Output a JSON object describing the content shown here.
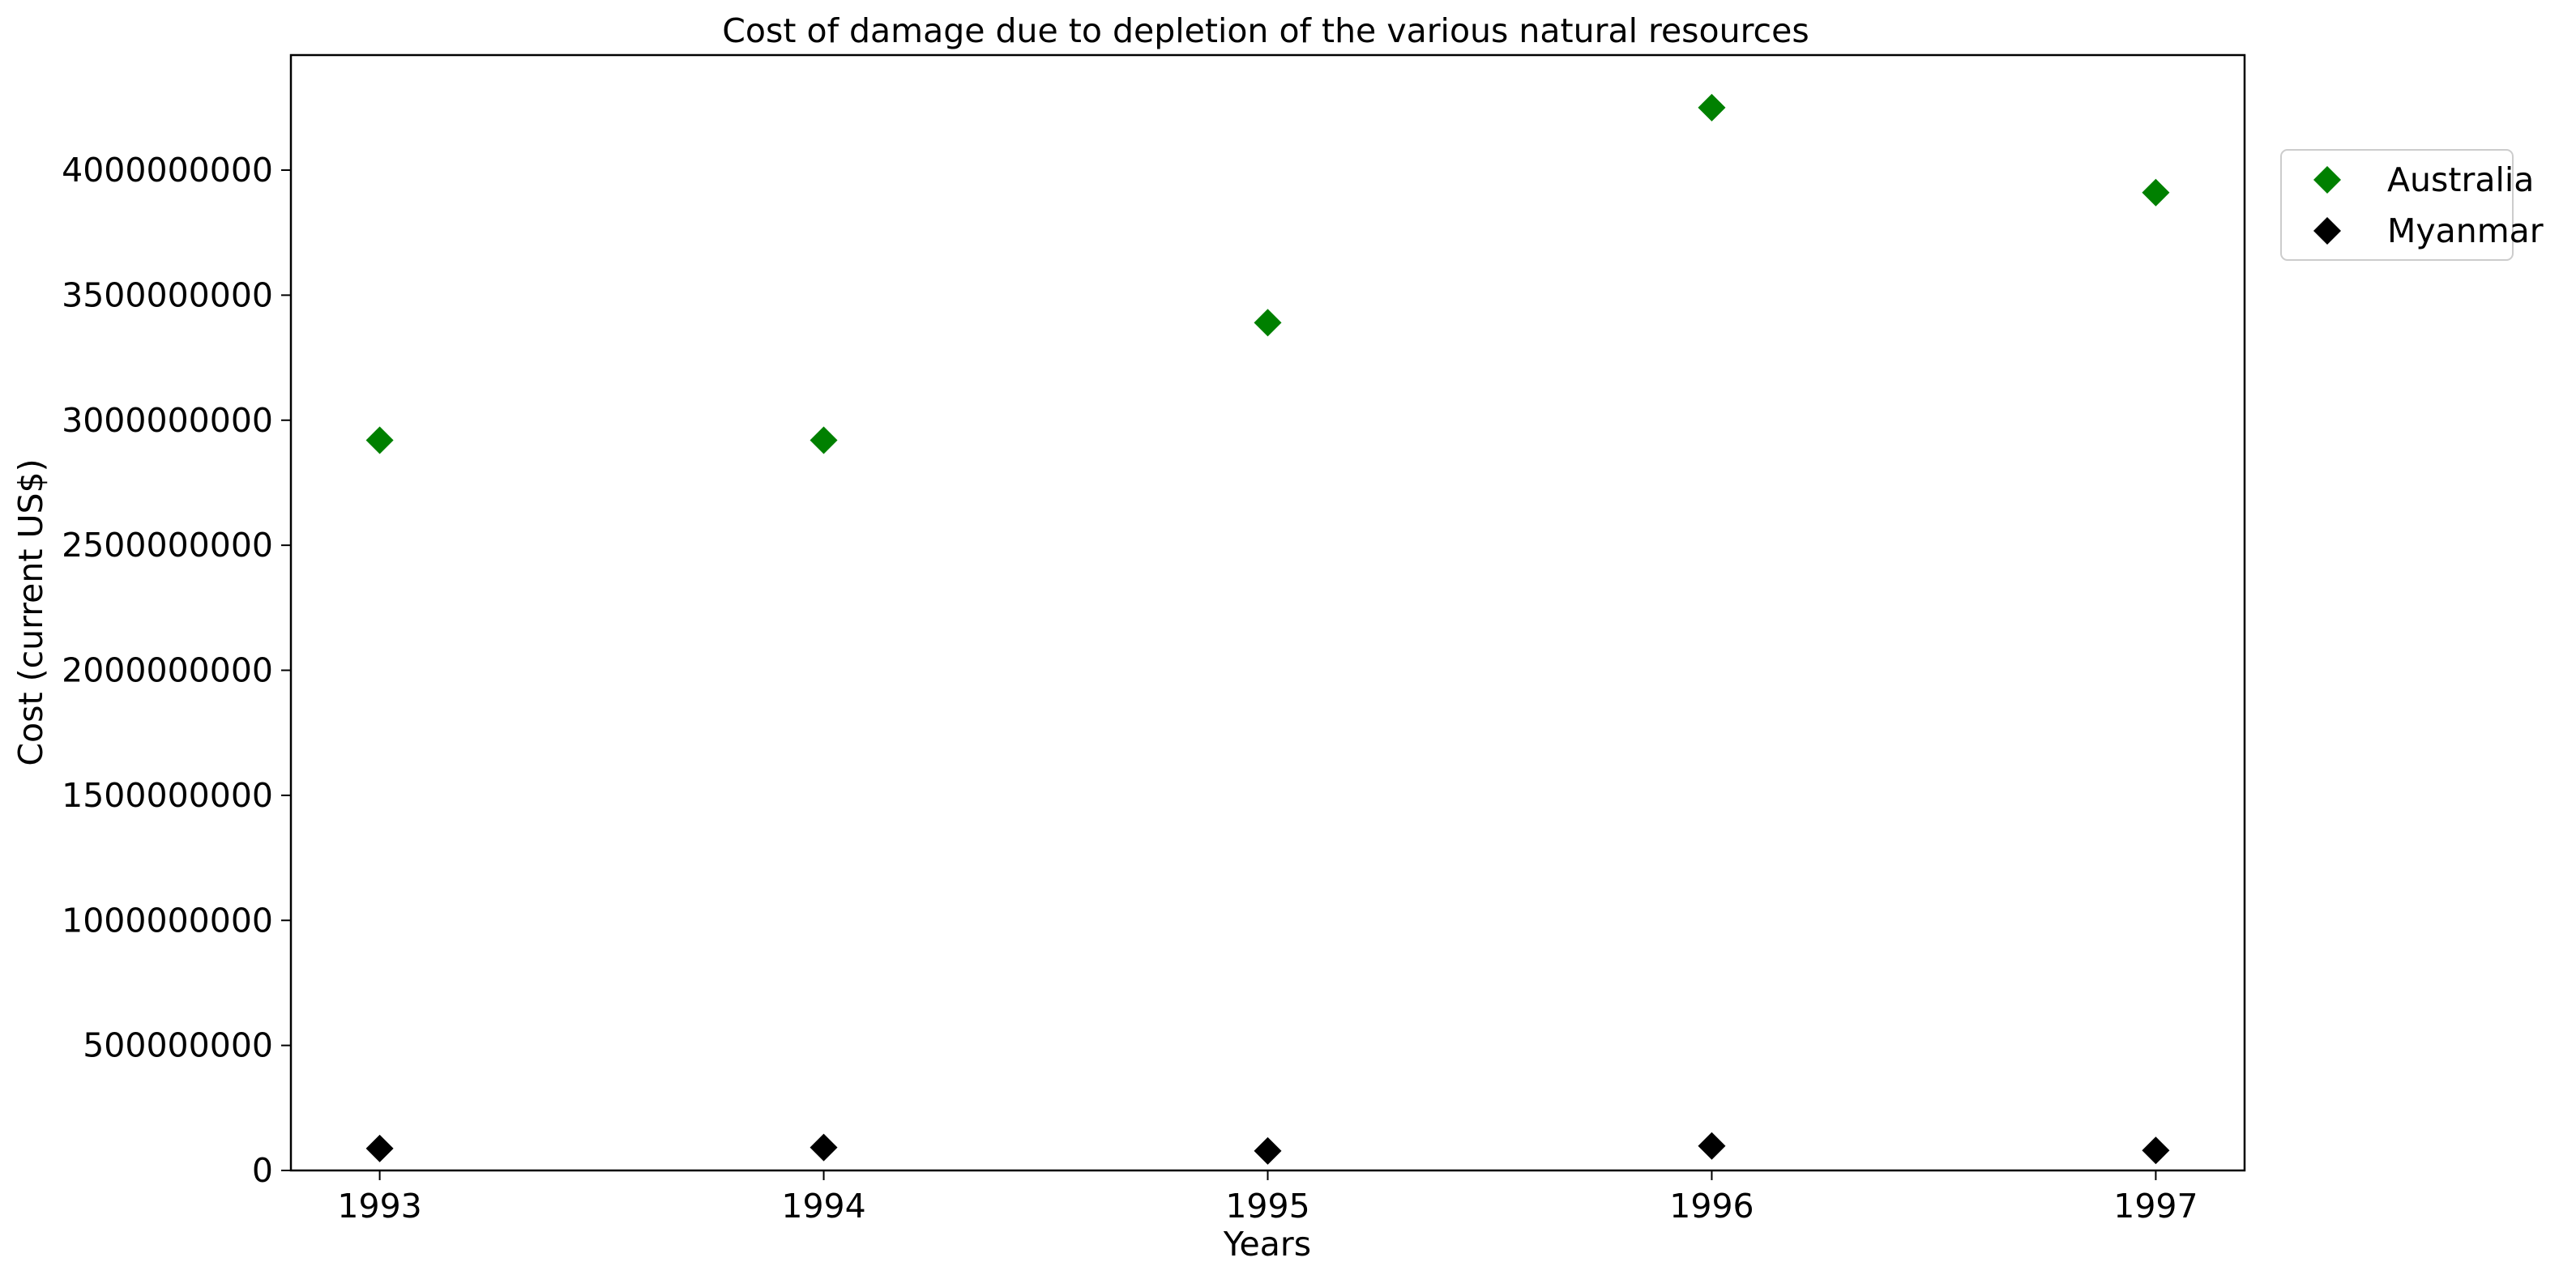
{
  "chart_data": {
    "type": "scatter",
    "title": "Cost of damage due to depletion of the various natural resources",
    "xlabel": "Years",
    "ylabel": "Cost (current US$)",
    "x": [
      "1993",
      "1994",
      "1995",
      "1996",
      "1997"
    ],
    "xlim": [
      1992.8,
      1997.2
    ],
    "ylim": [
      0,
      4460000000
    ],
    "yticks": [
      "0",
      "500000000",
      "1000000000",
      "1500000000",
      "2000000000",
      "2500000000",
      "3000000000",
      "3500000000",
      "4000000000"
    ],
    "marker": "diamond",
    "grid": false,
    "legend_position": "right, outside plot, top",
    "series": [
      {
        "name": "Australia",
        "color": "#008000",
        "values": [
          2920000000,
          2920000000,
          3390000000,
          4250000000,
          3910000000
        ]
      },
      {
        "name": "Myanmar",
        "color": "#000000",
        "values": [
          88000000,
          92000000,
          78000000,
          98000000,
          80000000
        ]
      }
    ]
  }
}
